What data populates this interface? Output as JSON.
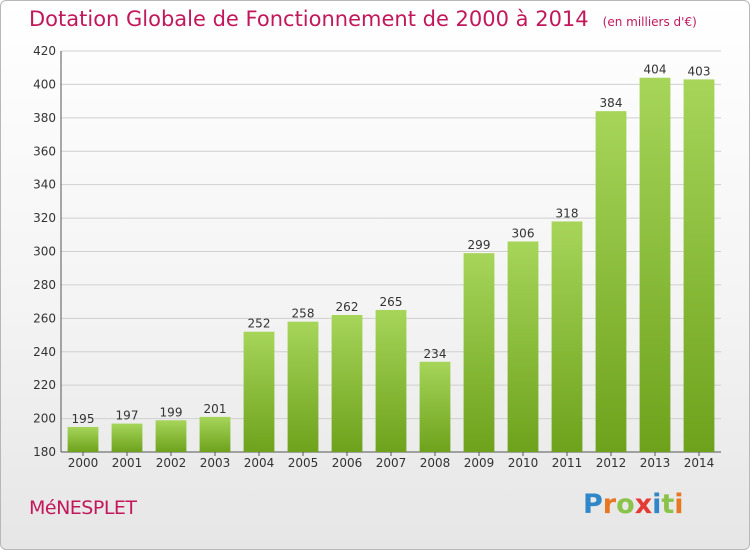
{
  "header": {
    "title": "Dotation Globale de Fonctionnement de 2000 à 2014",
    "subtitle": "(en milliers d'€)"
  },
  "footer": {
    "commune": "MéNESPLET",
    "logo_letters": [
      "P",
      "r",
      "o",
      "x",
      "i",
      "t",
      "i"
    ],
    "logo_colors": [
      "#2f86c8",
      "#e87722",
      "#8bc34a",
      "#e53935",
      "#2f86c8",
      "#8bc34a",
      "#e87722"
    ]
  },
  "colors": {
    "bar_light": "#a6d55a",
    "bar_dark": "#6ea21c",
    "grid": "#d0d0d0",
    "title": "#c2185b"
  },
  "chart_data": {
    "type": "bar",
    "categories": [
      "2000",
      "2001",
      "2002",
      "2003",
      "2004",
      "2005",
      "2006",
      "2007",
      "2008",
      "2009",
      "2010",
      "2011",
      "2012",
      "2013",
      "2014"
    ],
    "values": [
      195,
      197,
      199,
      201,
      252,
      258,
      262,
      265,
      234,
      299,
      306,
      318,
      384,
      404,
      403
    ],
    "ylim": [
      180,
      420
    ],
    "yticks": [
      180,
      200,
      220,
      240,
      260,
      280,
      300,
      320,
      340,
      360,
      380,
      400,
      420
    ],
    "grid": true,
    "data_labels": true
  }
}
